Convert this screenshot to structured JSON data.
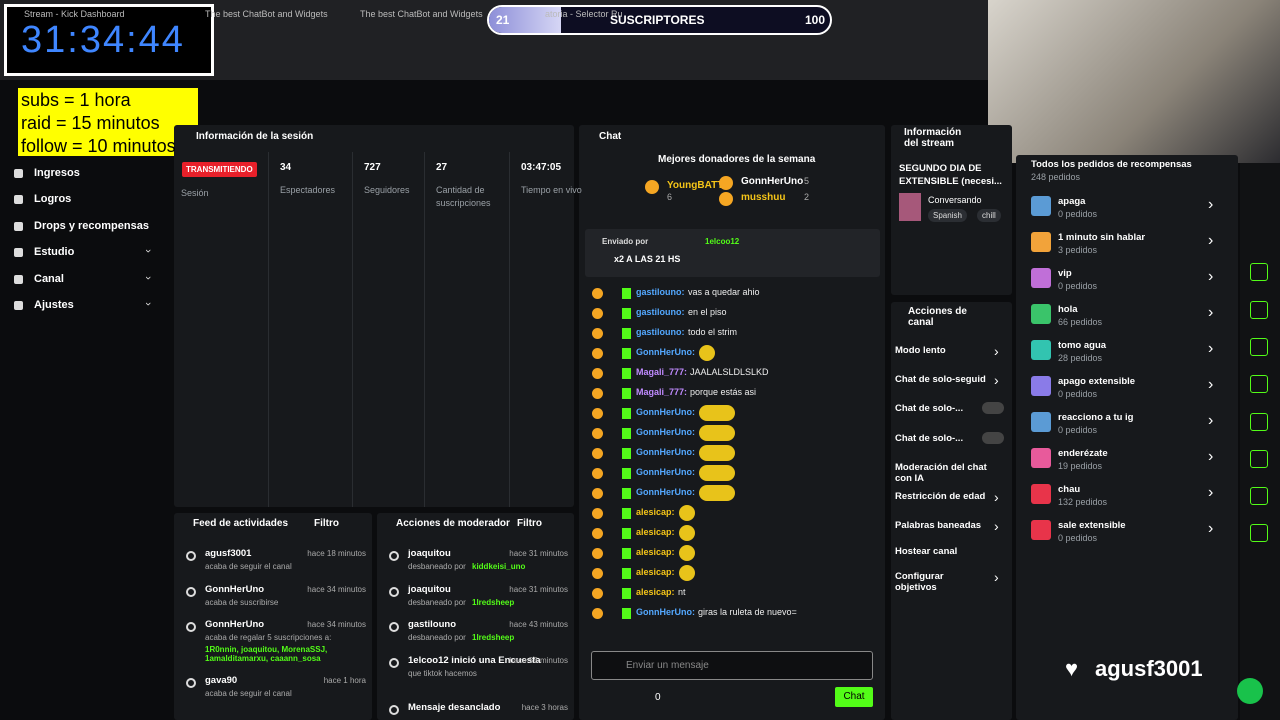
{
  "tabs": [
    "Stream - Kick Dashboard",
    "The best ChatBot and Widgets",
    "The best ChatBot and Widgets",
    "atoria - Selector Ru"
  ],
  "timer": "31:34:44",
  "rules": [
    "subs = 1 hora",
    "raid = 15 minutos",
    "follow = 10 minutos"
  ],
  "subs_goal": {
    "current": 21,
    "label": "SUSCRIPTORES",
    "goal": 100
  },
  "sidebar": [
    "Ingresos",
    "Logros",
    "Drops y recompensas",
    "Estudio",
    "Canal",
    "Ajustes"
  ],
  "session": {
    "title": "Información de la sesión",
    "status": "TRANSMITIENDO",
    "status_label": "Sesión",
    "stats": [
      {
        "value": "34",
        "label": "Espectadores"
      },
      {
        "value": "727",
        "label": "Seguidores"
      },
      {
        "value": "27",
        "label": "Cantidad de suscripciones"
      },
      {
        "value": "03:47:05",
        "label": "Tiempo en vivo"
      }
    ]
  },
  "activity": {
    "title": "Feed de actividades",
    "filter": "Filtro",
    "items": [
      {
        "user": "agusf3001",
        "time": "hace 18 minutos",
        "text": "acaba de seguir el canal"
      },
      {
        "user": "GonnHerUno",
        "time": "hace 34 minutos",
        "text": "acaba de suscribirse"
      },
      {
        "user": "GonnHerUno",
        "time": "hace 34 minutos",
        "text": "acaba de regalar 5 suscripciones a:",
        "extra": "1R0nnin, joaquitou, MorenaSSJ, 1amalditamarxu, caaann_sosa"
      },
      {
        "user": "gava90",
        "time": "hace 1 hora",
        "text": "acaba de seguir el canal"
      }
    ]
  },
  "mod": {
    "title": "Acciones de moderador",
    "filter": "Filtro",
    "items": [
      {
        "user": "joaquitou",
        "time": "hace 31 minutos",
        "text": "desbaneado por",
        "extra": "kiddkeisi_uno"
      },
      {
        "user": "joaquitou",
        "time": "hace 31 minutos",
        "text": "desbaneado por",
        "extra": "1lredsheep"
      },
      {
        "user": "gastilouno",
        "time": "hace 43 minutos",
        "text": "desbaneado por",
        "extra": "1lredsheep"
      },
      {
        "user": "1elcoo12 inició una Encuesta",
        "time": "hace 55 minutos",
        "text": "que tiktok hacemos"
      },
      {
        "user": "Mensaje desanclado",
        "time": "hace 3 horas"
      }
    ]
  },
  "chat": {
    "title": "Chat",
    "donors_title": "Mejores donadores de la semana",
    "donors": [
      {
        "name": "YoungBATT",
        "count": "6"
      },
      {
        "name": "GonnHerUno",
        "count": "5"
      },
      {
        "name": "musshuu",
        "count": "2"
      }
    ],
    "pinned": {
      "label": "Enviado por",
      "user": "1elcoo12",
      "text": "x2 A LAS 21 HS"
    },
    "messages": [
      {
        "user": "gastilouno:",
        "text": "vas a quedar ahio",
        "color": "#53a8ff"
      },
      {
        "user": "gastilouno:",
        "text": "en el piso",
        "color": "#53a8ff"
      },
      {
        "user": "gastilouno:",
        "text": "todo el strim",
        "color": "#53a8ff"
      },
      {
        "user": "GonnHerUno:",
        "color": "#53a8ff"
      },
      {
        "user": "Magali_777:",
        "text": "JAALALSLDLSLKD",
        "color": "#c08bff"
      },
      {
        "user": "Magali_777:",
        "text": "porque estás asi",
        "color": "#c08bff"
      },
      {
        "user": "GonnHerUno:",
        "color": "#53a8ff"
      },
      {
        "user": "GonnHerUno:",
        "color": "#53a8ff"
      },
      {
        "user": "GonnHerUno:",
        "color": "#53a8ff"
      },
      {
        "user": "GonnHerUno:",
        "color": "#53a8ff"
      },
      {
        "user": "GonnHerUno:",
        "color": "#53a8ff"
      },
      {
        "user": "alesicap:",
        "color": "#f5c518"
      },
      {
        "user": "alesicap:",
        "color": "#f5c518"
      },
      {
        "user": "alesicap:",
        "color": "#f5c518"
      },
      {
        "user": "alesicap:",
        "color": "#f5c518"
      },
      {
        "user": "alesicap:",
        "text": "nt",
        "color": "#f5c518"
      },
      {
        "user": "GonnHerUno:",
        "text": "giras la ruleta de nuevo=",
        "color": "#53a8ff"
      }
    ],
    "placeholder": "Enviar un mensaje",
    "points": "0",
    "send": "Chat"
  },
  "stream_info": {
    "title": "Información del stream",
    "stream_title": "SEGUNDO DIA DE EXTENSIBLE (necesi...",
    "category": "Conversando",
    "tags": [
      "Spanish",
      "chill"
    ]
  },
  "channel_actions": {
    "title": "Acciones de canal",
    "items": [
      "Modo lento",
      "Chat de solo-seguid",
      "Chat de solo-...",
      "Chat de solo-...",
      "Moderación del chat con IA",
      "Restricción de edad",
      "Palabras baneadas",
      "Hostear canal",
      "Configurar objetivos"
    ]
  },
  "rewards": {
    "title": "Todos los pedidos de recompensas",
    "total": "248 pedidos",
    "items": [
      {
        "name": "apaga",
        "count": "0 pedidos",
        "color": "#5b9bd5"
      },
      {
        "name": "1 minuto sin hablar",
        "count": "3 pedidos",
        "color": "#f2a33a"
      },
      {
        "name": "vip",
        "count": "0 pedidos",
        "color": "#c06fd8"
      },
      {
        "name": "hola",
        "count": "66 pedidos",
        "color": "#3ac46a"
      },
      {
        "name": "tomo agua",
        "count": "28 pedidos",
        "color": "#32c4b0"
      },
      {
        "name": "apago extensible",
        "count": "0 pedidos",
        "color": "#8a7be8"
      },
      {
        "name": "reacciono a tu ig",
        "count": "0 pedidos",
        "color": "#5b9bd5"
      },
      {
        "name": "enderézate",
        "count": "19 pedidos",
        "color": "#e85a9b"
      },
      {
        "name": "chau",
        "count": "132 pedidos",
        "color": "#e8344a"
      },
      {
        "name": "sale extensible",
        "count": "0 pedidos",
        "color": "#e8344a"
      }
    ]
  },
  "overlay_name": "agusf3001"
}
